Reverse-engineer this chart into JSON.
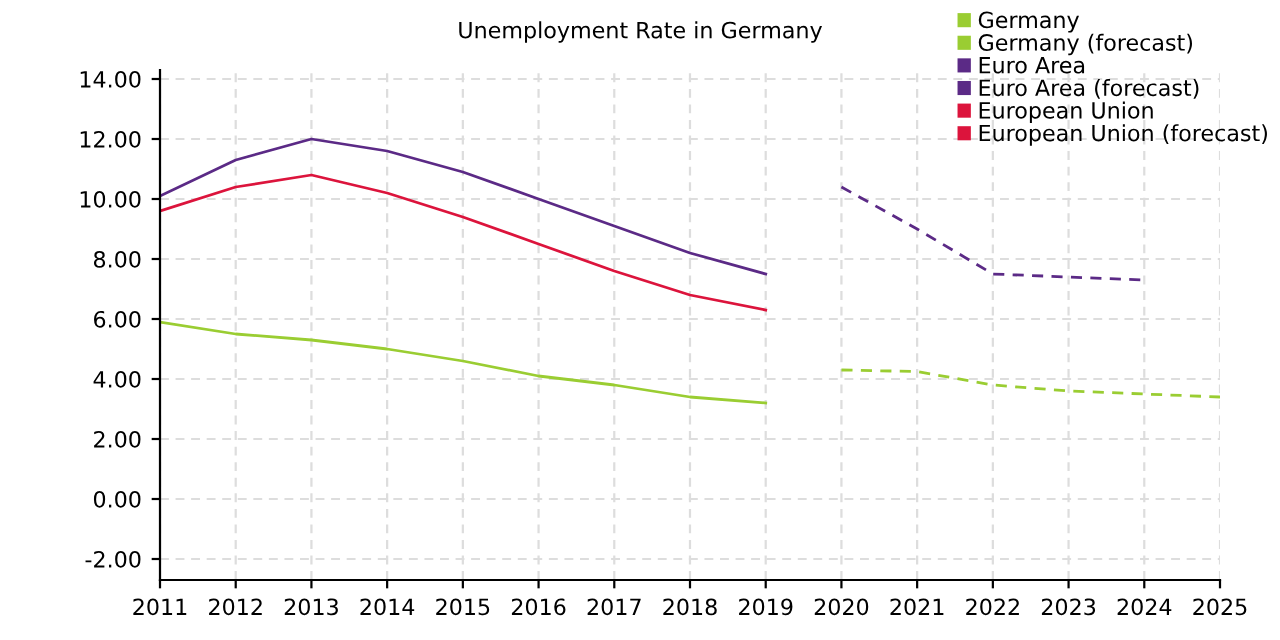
{
  "chart_data": {
    "type": "line",
    "title": "Unemployment Rate in Germany",
    "x": [
      2011,
      2012,
      2013,
      2014,
      2015,
      2016,
      2017,
      2018,
      2019
    ],
    "series": [
      {
        "name": "Germany",
        "color": "#9acd32",
        "line_style": "solid",
        "values": [
          5.9,
          5.5,
          5.3,
          5.0,
          4.6,
          4.1,
          3.8,
          3.4,
          3.2
        ]
      },
      {
        "name": "Germany (forecast)",
        "color": "#9acd32",
        "line_style": "dashed",
        "x": [
          2020,
          2021,
          2022,
          2023,
          2024,
          2025
        ],
        "values": [
          4.3,
          4.25,
          3.8,
          3.6,
          3.5,
          3.4
        ]
      },
      {
        "name": "Euro Area",
        "color": "#5b2a86",
        "line_style": "solid",
        "values": [
          10.1,
          11.3,
          12.0,
          11.6,
          10.9,
          10.0,
          9.1,
          8.2,
          7.5
        ]
      },
      {
        "name": "Euro Area (forecast)",
        "color": "#5b2a86",
        "line_style": "dashed",
        "x": [
          2020,
          2021,
          2022,
          2023,
          2024
        ],
        "values": [
          10.4,
          9.0,
          7.5,
          7.4,
          7.3
        ]
      },
      {
        "name": "European Union",
        "color": "#dc143c",
        "line_style": "solid",
        "values": [
          9.6,
          10.4,
          10.8,
          10.2,
          9.4,
          8.5,
          7.6,
          6.8,
          6.3
        ]
      },
      {
        "name": "European Union (forecast)",
        "color": "#dc143c",
        "line_style": "dashed",
        "values": [
          null,
          null,
          null,
          null,
          null,
          null,
          null,
          null,
          null
        ]
      }
    ],
    "xlim": [
      2011,
      2025
    ],
    "xticks": [
      2011,
      2012,
      2013,
      2014,
      2015,
      2016,
      2017,
      2018,
      2019,
      2020,
      2021,
      2022,
      2023,
      2024,
      2025
    ],
    "ylim": [
      -2.7,
      14.3
    ],
    "yticks": [
      {
        "value": -2,
        "label": "-2.00"
      },
      {
        "value": 0,
        "label": "0.00"
      },
      {
        "value": 2,
        "label": "2.00"
      },
      {
        "value": 4,
        "label": "4.00"
      },
      {
        "value": 6,
        "label": "6.00"
      },
      {
        "value": 8,
        "label": "8.00"
      },
      {
        "value": 10,
        "label": "10.00"
      },
      {
        "value": 12,
        "label": "12.00"
      },
      {
        "value": 14,
        "label": "14.00"
      }
    ],
    "grid": true,
    "legend": "top right",
    "marker": "none"
  }
}
